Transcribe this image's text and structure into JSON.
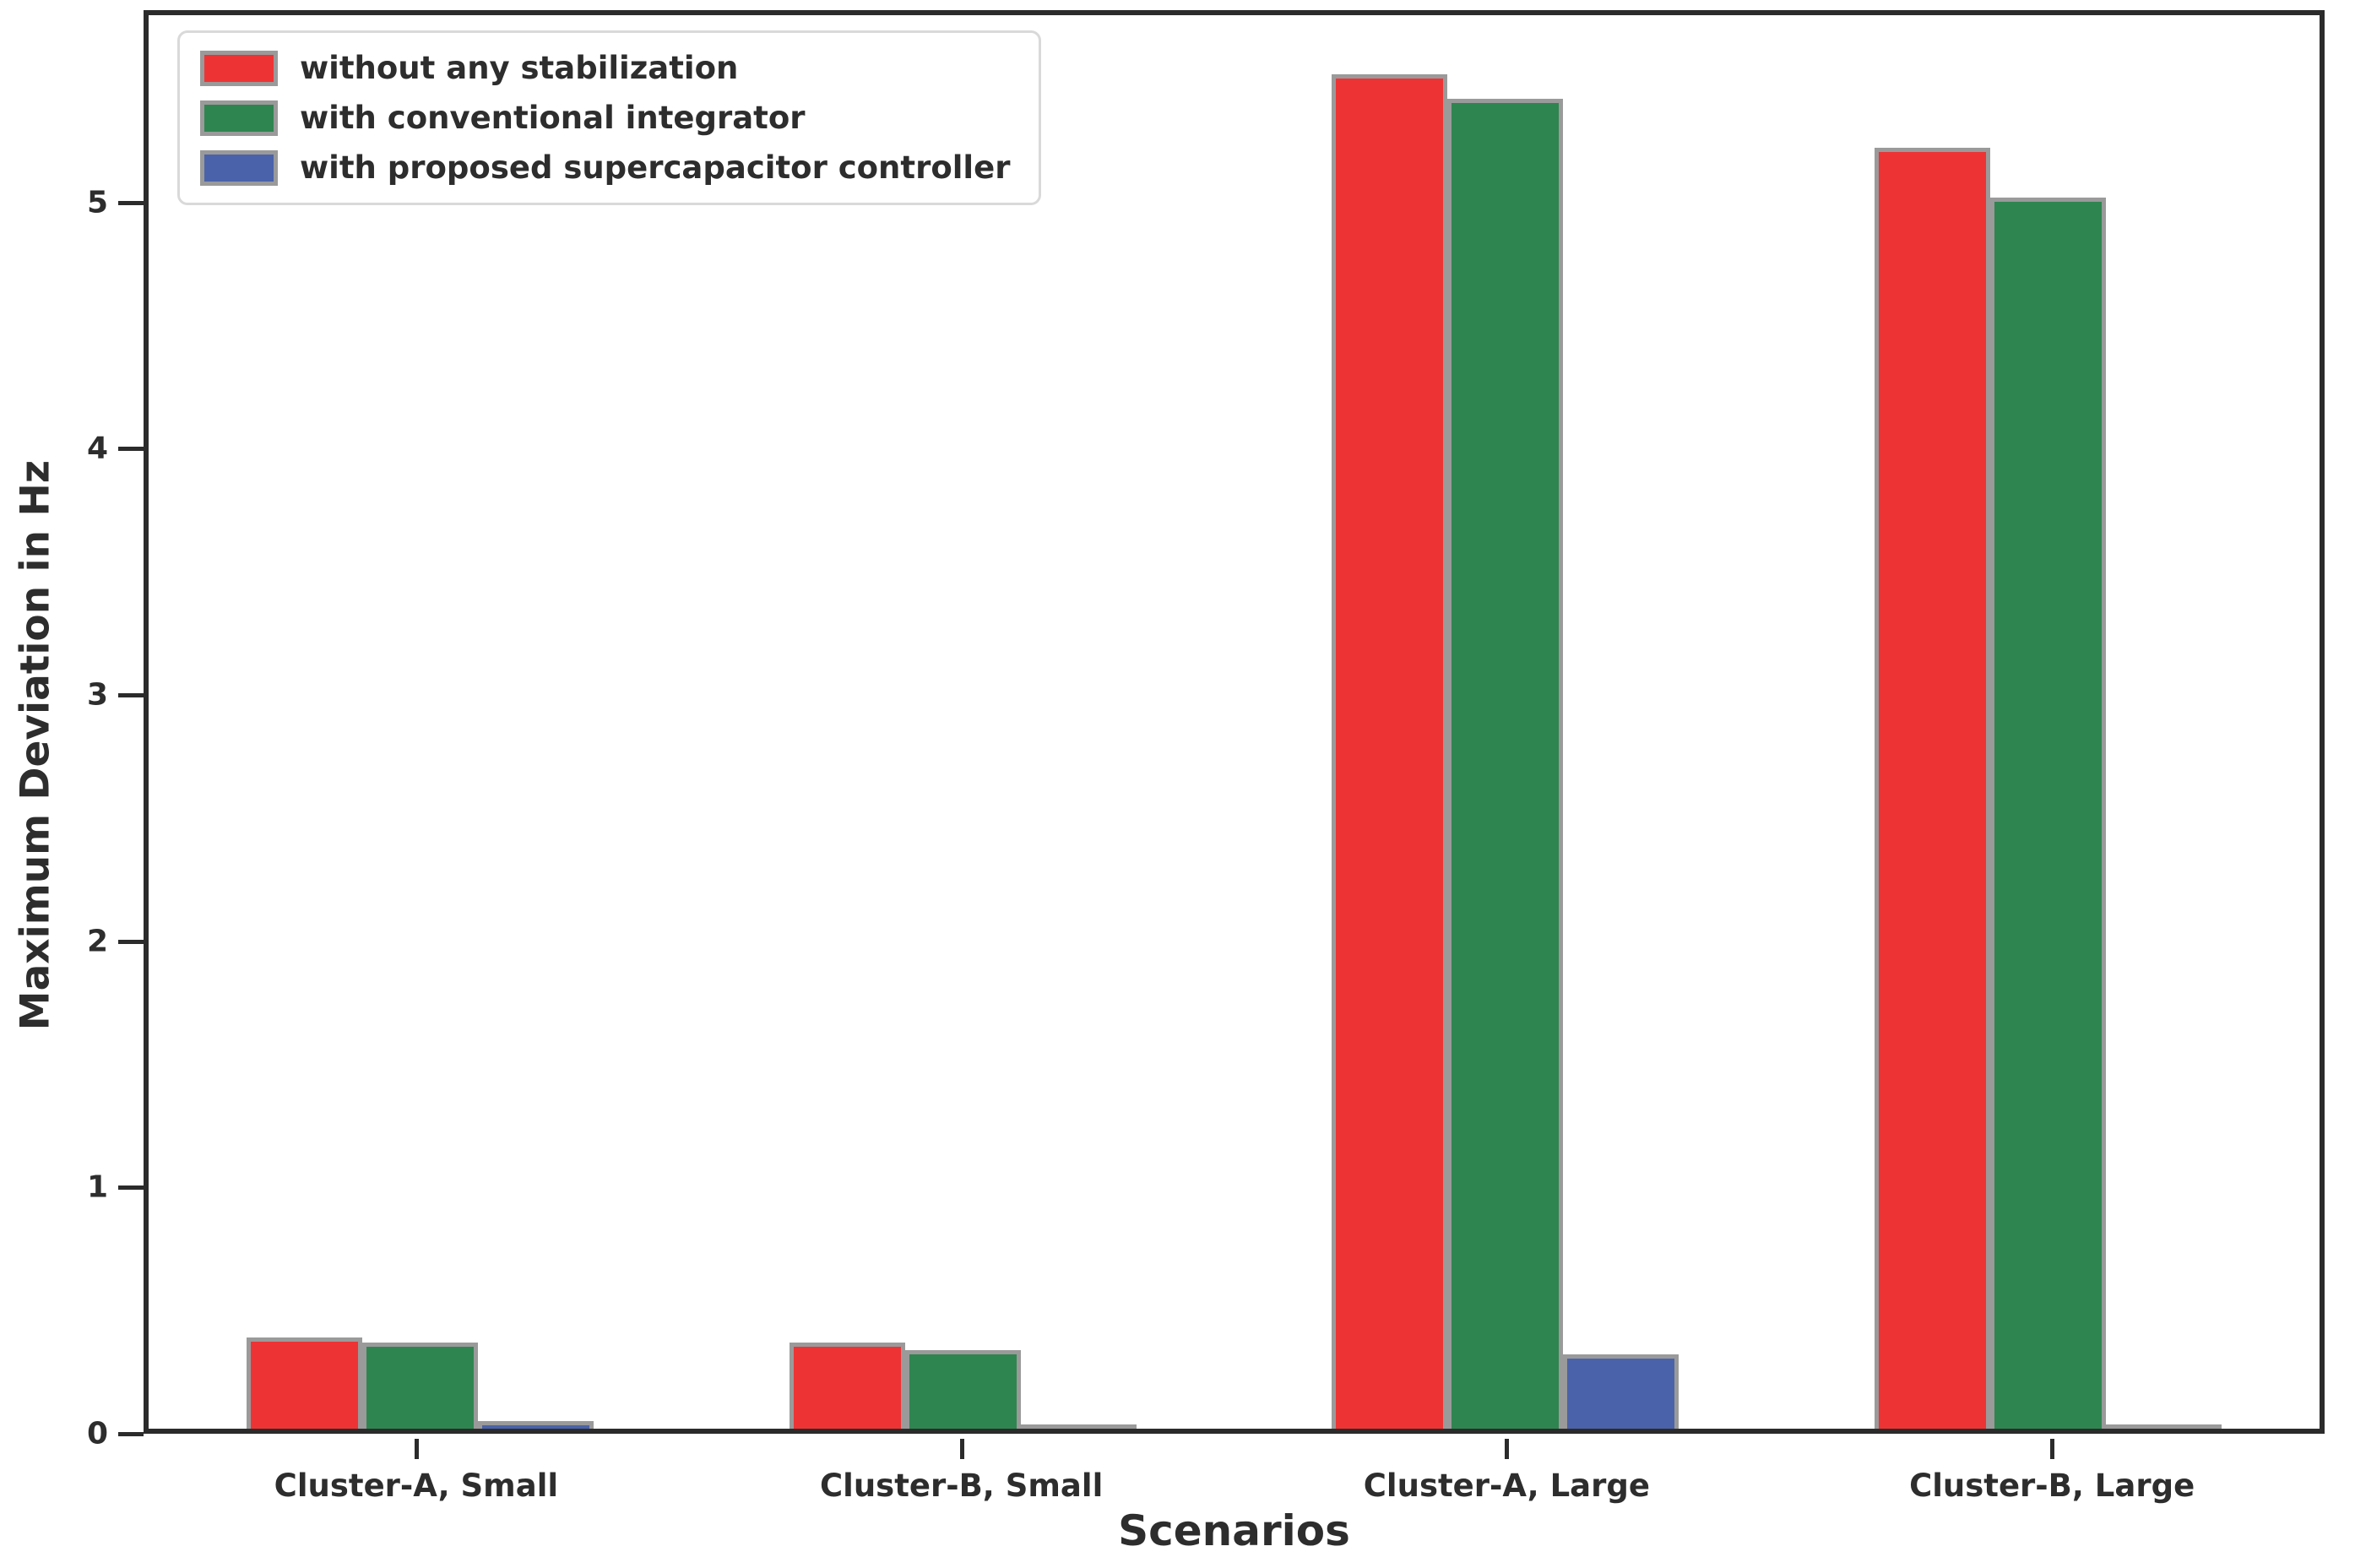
{
  "chart_data": {
    "type": "bar",
    "title": "",
    "xlabel": "Scenarios",
    "ylabel": "Maximum Deviation in Hz",
    "categories": [
      "Cluster-A, Small",
      "Cluster-B, Small",
      "Cluster-A, Large",
      "Cluster-B, Large"
    ],
    "series": [
      {
        "name": "without any stabilization",
        "color": "#ee3335",
        "values": [
          0.37,
          0.35,
          5.5,
          5.2
        ]
      },
      {
        "name": "with conventional integrator",
        "color": "#2e8550",
        "values": [
          0.35,
          0.32,
          5.4,
          5.0
        ]
      },
      {
        "name": "with proposed supercapacitor controller",
        "color": "#4a62a9",
        "values": [
          0.03,
          0.01,
          0.3,
          0.01
        ]
      }
    ],
    "yticks": [
      0,
      1,
      2,
      3,
      4,
      5
    ],
    "ylim": [
      0,
      5.78
    ],
    "grid": false,
    "legend_position": "upper left",
    "bar_edge_color": "#9a9a9a",
    "spine_color": "#2b2b2b",
    "text_color": "#2d2d2d"
  }
}
